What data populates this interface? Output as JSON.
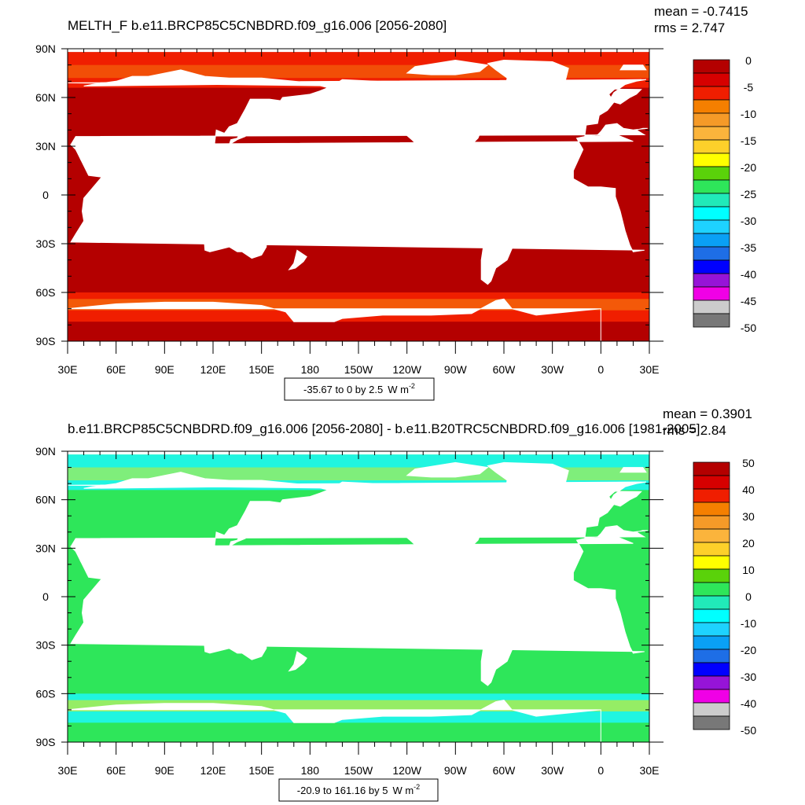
{
  "panels": [
    {
      "title": "MELTH_F b.e11.BRCP85C5CNBDRD.f09_g16.006 [2056-2080]",
      "mean": "mean = -0.7415",
      "rms": "rms = 2.747",
      "range_label": "-35.67 to 0 by 2.5",
      "units": "W m",
      "units_exp": "-2",
      "colorbar_labels": [
        "0",
        "-5",
        "-10",
        "-15",
        "-20",
        "-25",
        "-30",
        "-35",
        "-40",
        "-45",
        "-50"
      ],
      "ocean_color": "#b40000",
      "seaice_color": "#f01e00",
      "edge_color": "#f58a10"
    },
    {
      "title": "b.e11.BRCP85C5CNBDRD.f09_g16.006 [2056-2080] - b.e11.B20TRC5CNBDRD.f09_g16.006 [1981-2005]",
      "mean": "mean = 0.3901",
      "rms": "rms = 2.84",
      "range_label": "-20.9 to 161.16 by 5",
      "units": "W m",
      "units_exp": "-2",
      "colorbar_labels": [
        "50",
        "40",
        "30",
        "20",
        "10",
        "0",
        "-10",
        "-20",
        "-30",
        "-40",
        "-50"
      ],
      "ocean_color": "#2ee65a",
      "seaice_color": "#20f5e0",
      "edge_color": "#f5e600"
    }
  ],
  "axes": {
    "lat_labels": [
      "90N",
      "60N",
      "30N",
      "0",
      "30S",
      "60S",
      "90S"
    ],
    "lat_values": [
      90,
      60,
      30,
      0,
      -30,
      -60,
      -90
    ],
    "lon_labels": [
      "30E",
      "60E",
      "90E",
      "120E",
      "150E",
      "180",
      "150W",
      "120W",
      "90W",
      "60W",
      "30W",
      "0",
      "30E"
    ],
    "lon_values": [
      30,
      60,
      90,
      120,
      150,
      180,
      210,
      240,
      270,
      300,
      330,
      360,
      390
    ]
  },
  "colorbar_colors": [
    "#b40000",
    "#d60000",
    "#f01e00",
    "#f57f00",
    "#f59a28",
    "#fbb43c",
    "#fdd02a",
    "#ffff00",
    "#5ad20a",
    "#2ee65a",
    "#21eab9",
    "#00ffff",
    "#1ed2ff",
    "#0aa0f5",
    "#1e6ee6",
    "#0000ff",
    "#9614d7",
    "#f000e6",
    "#cccccc",
    "#787878"
  ],
  "land_color": "#ffffff"
}
